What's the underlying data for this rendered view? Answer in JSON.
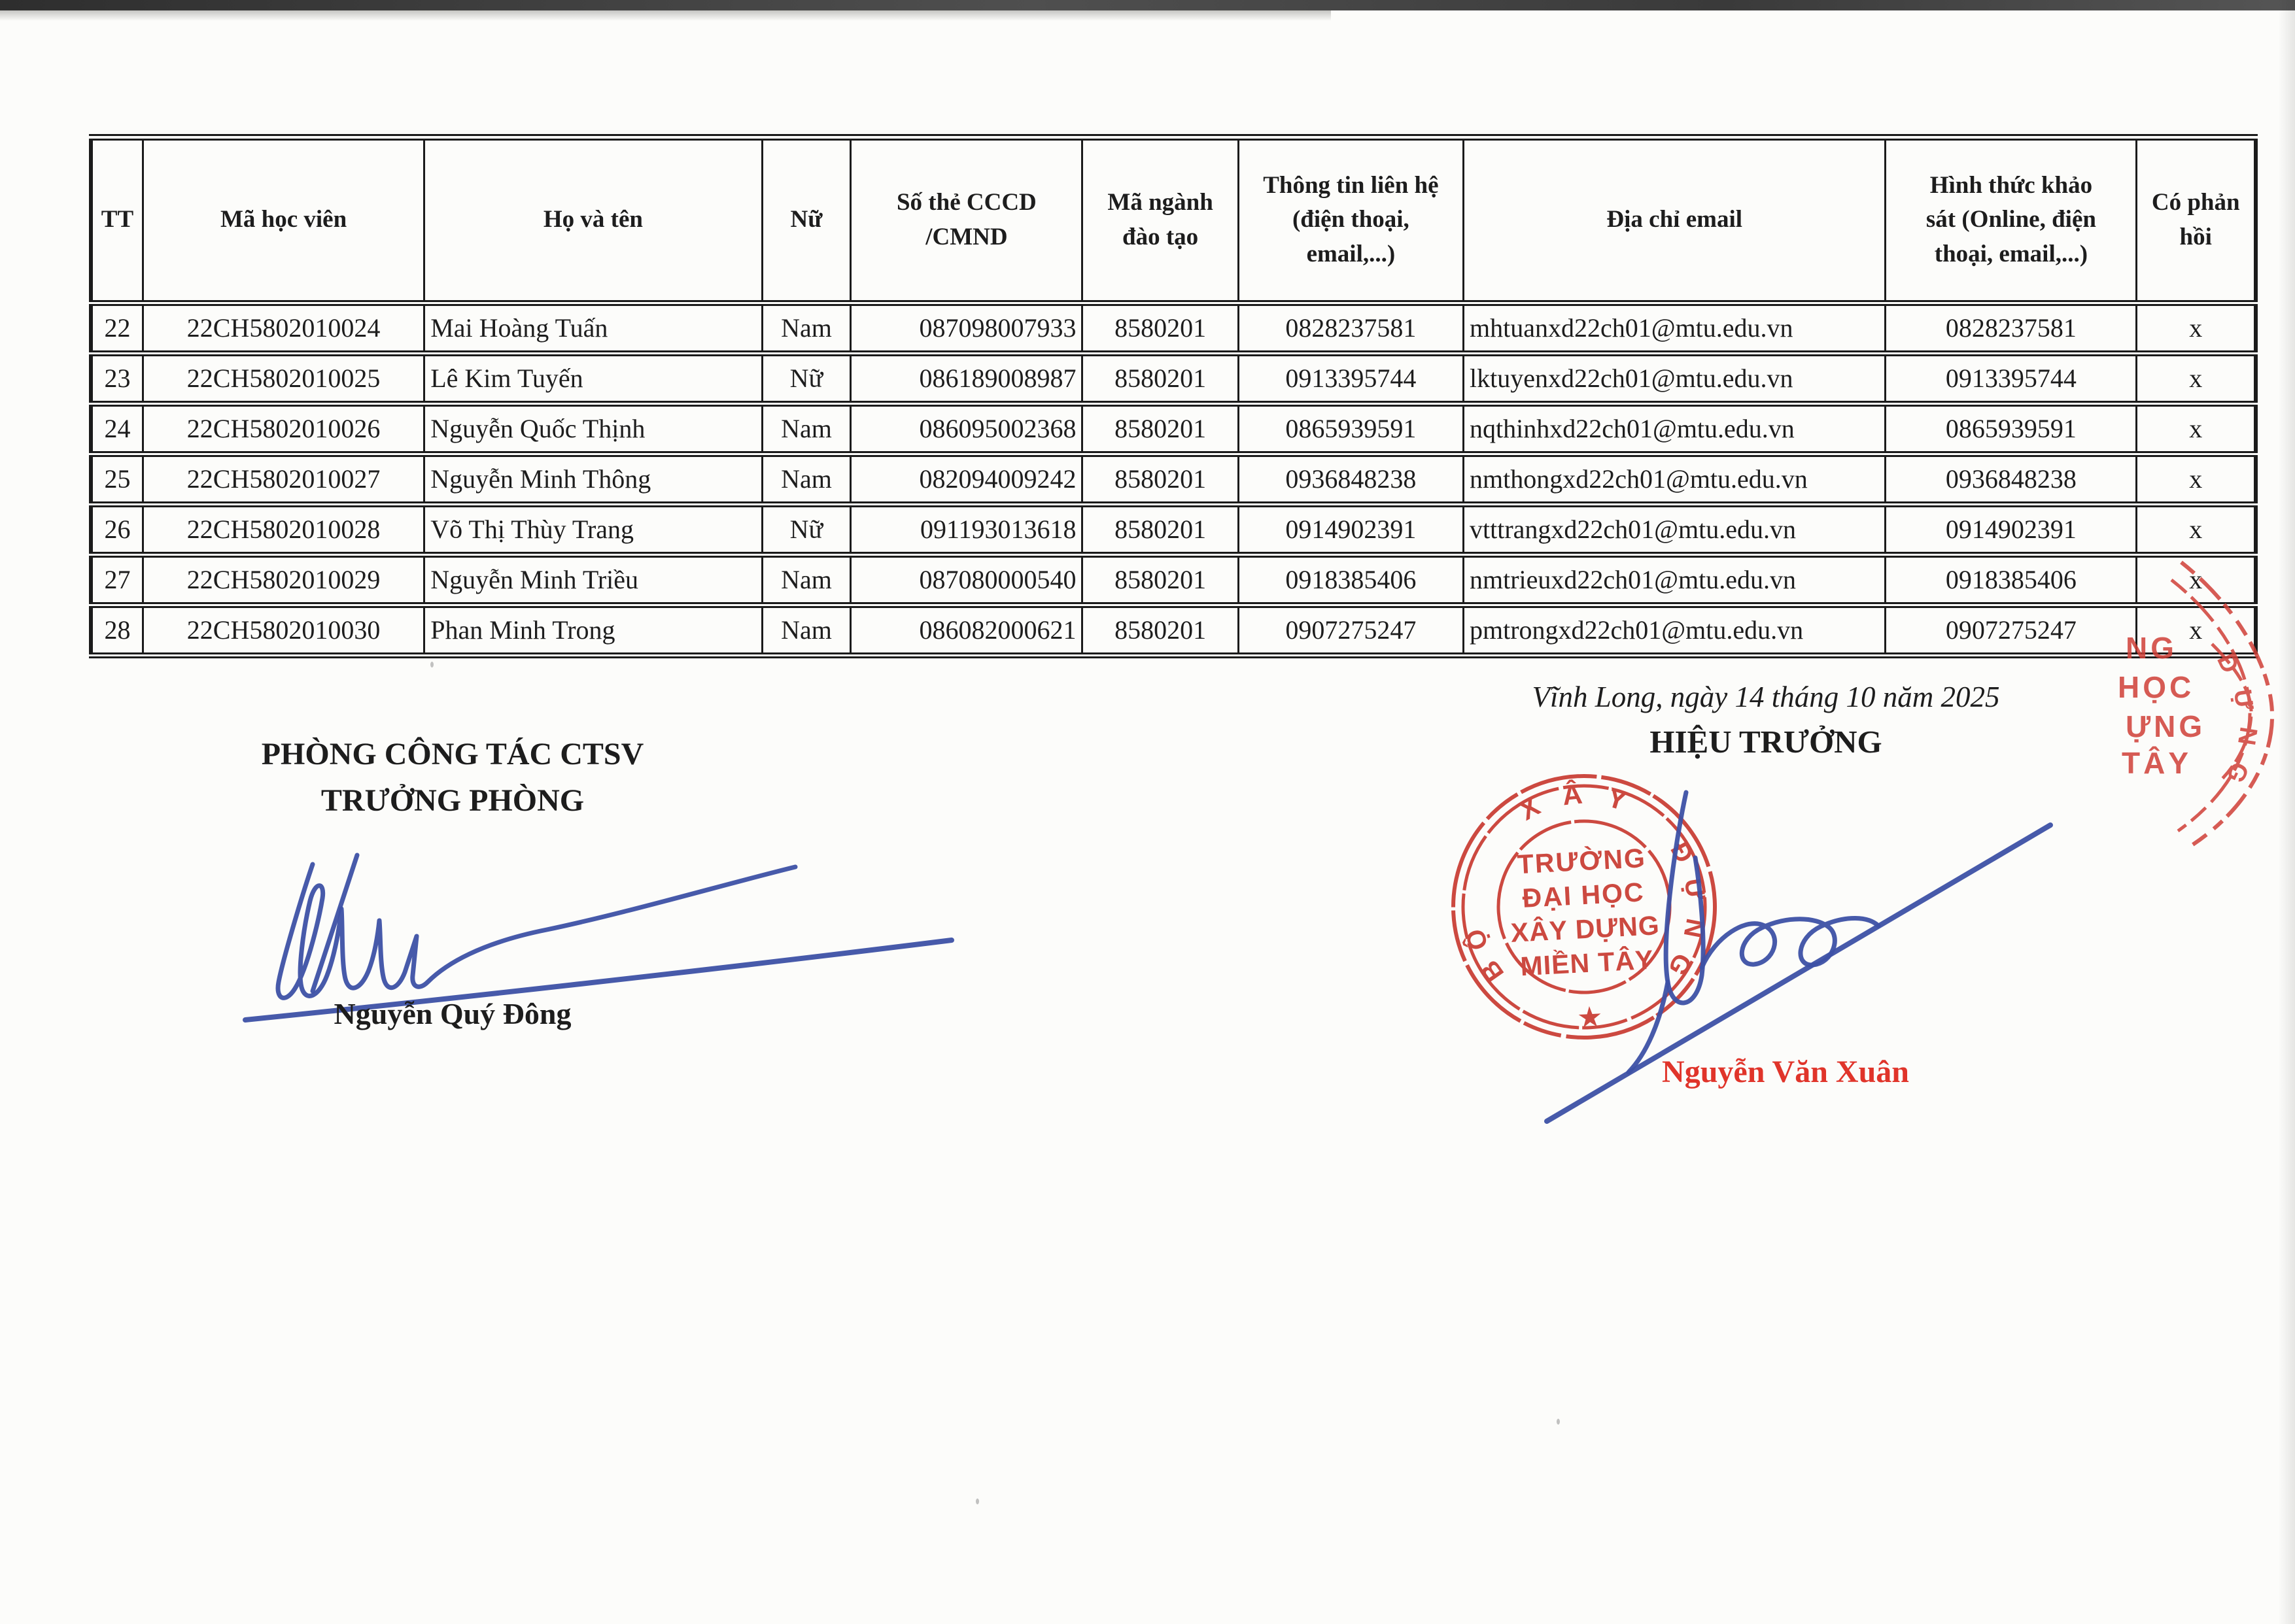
{
  "table": {
    "headers": [
      "TT",
      "Mã học viên",
      "Họ và tên",
      "Nữ",
      "Số thẻ CCCD\n/CMND",
      "Mã ngành\nđào tạo",
      "Thông tin liên hệ\n(điện thoại,\nemail,...)",
      "Địa chỉ email",
      "Hình thức khảo\nsát (Online, điện\nthoại, email,...)",
      "Có phản\nhồi"
    ],
    "rows": [
      {
        "tt": "22",
        "code": "22CH5802010024",
        "name": "Mai Hoàng Tuấn",
        "sex": "Nam",
        "cccd": "087098007933",
        "major": "8580201",
        "contact": "0828237581",
        "email": "mhtuanxd22ch01@mtu.edu.vn",
        "survey": "0828237581",
        "feedback": "x"
      },
      {
        "tt": "23",
        "code": "22CH5802010025",
        "name": "Lê Kim Tuyến",
        "sex": "Nữ",
        "cccd": "086189008987",
        "major": "8580201",
        "contact": "0913395744",
        "email": "lktuyenxd22ch01@mtu.edu.vn",
        "survey": "0913395744",
        "feedback": "x"
      },
      {
        "tt": "24",
        "code": "22CH5802010026",
        "name": "Nguyễn Quốc Thịnh",
        "sex": "Nam",
        "cccd": "086095002368",
        "major": "8580201",
        "contact": "0865939591",
        "email": "nqthinhxd22ch01@mtu.edu.vn",
        "survey": "0865939591",
        "feedback": "x"
      },
      {
        "tt": "25",
        "code": "22CH5802010027",
        "name": "Nguyễn Minh Thông",
        "sex": "Nam",
        "cccd": "082094009242",
        "major": "8580201",
        "contact": "0936848238",
        "email": "nmthongxd22ch01@mtu.edu.vn",
        "survey": "0936848238",
        "feedback": "x"
      },
      {
        "tt": "26",
        "code": "22CH5802010028",
        "name": "Võ Thị Thùy Trang",
        "sex": "Nữ",
        "cccd": "091193013618",
        "major": "8580201",
        "contact": "0914902391",
        "email": "vtttrangxd22ch01@mtu.edu.vn",
        "survey": "0914902391",
        "feedback": "x"
      },
      {
        "tt": "27",
        "code": "22CH5802010029",
        "name": "Nguyễn Minh Triều",
        "sex": "Nam",
        "cccd": "087080000540",
        "major": "8580201",
        "contact": "0918385406",
        "email": "nmtrieuxd22ch01@mtu.edu.vn",
        "survey": "0918385406",
        "feedback": "x"
      },
      {
        "tt": "28",
        "code": "22CH5802010030",
        "name": "Phan Minh Trong",
        "sex": "Nam",
        "cccd": "086082000621",
        "major": "8580201",
        "contact": "0907275247",
        "email": "pmtrongxd22ch01@mtu.edu.vn",
        "survey": "0907275247",
        "feedback": "x"
      }
    ]
  },
  "left_signature": {
    "department": "PHÒNG CÔNG TÁC CTSV",
    "role": "TRƯỞNG PHÒNG",
    "name": "Nguyễn Quý Đông"
  },
  "right_signature": {
    "date_line": "Vĩnh Long, ngày 14 tháng 10 năm 2025",
    "title": "HIỆU TRƯỞNG",
    "name": "Nguyễn Văn Xuân"
  },
  "stamp": {
    "ring_letters": [
      "B",
      "Ộ",
      "X",
      "Â",
      "Y",
      "Đ",
      "Ự",
      "N",
      "G"
    ],
    "line1": "TRƯỜNG",
    "line2": "ĐẠI HỌC",
    "line3": "XÂY DỰNG",
    "line4": "MIỀN TÂY",
    "star": "★"
  },
  "stamp_fragment": {
    "line1": "NG",
    "line2": "HỌC",
    "line3": "ỰNG",
    "line4": "TÂY",
    "arc_letters": [
      "D",
      "Ự",
      "N",
      "G"
    ]
  },
  "colors": {
    "stamp_red": "#c93a31",
    "signature_blue": "#3d51a5",
    "name_red": "#e0342a",
    "text_black": "#1d1d1d",
    "paper": "#fcfcfa"
  }
}
